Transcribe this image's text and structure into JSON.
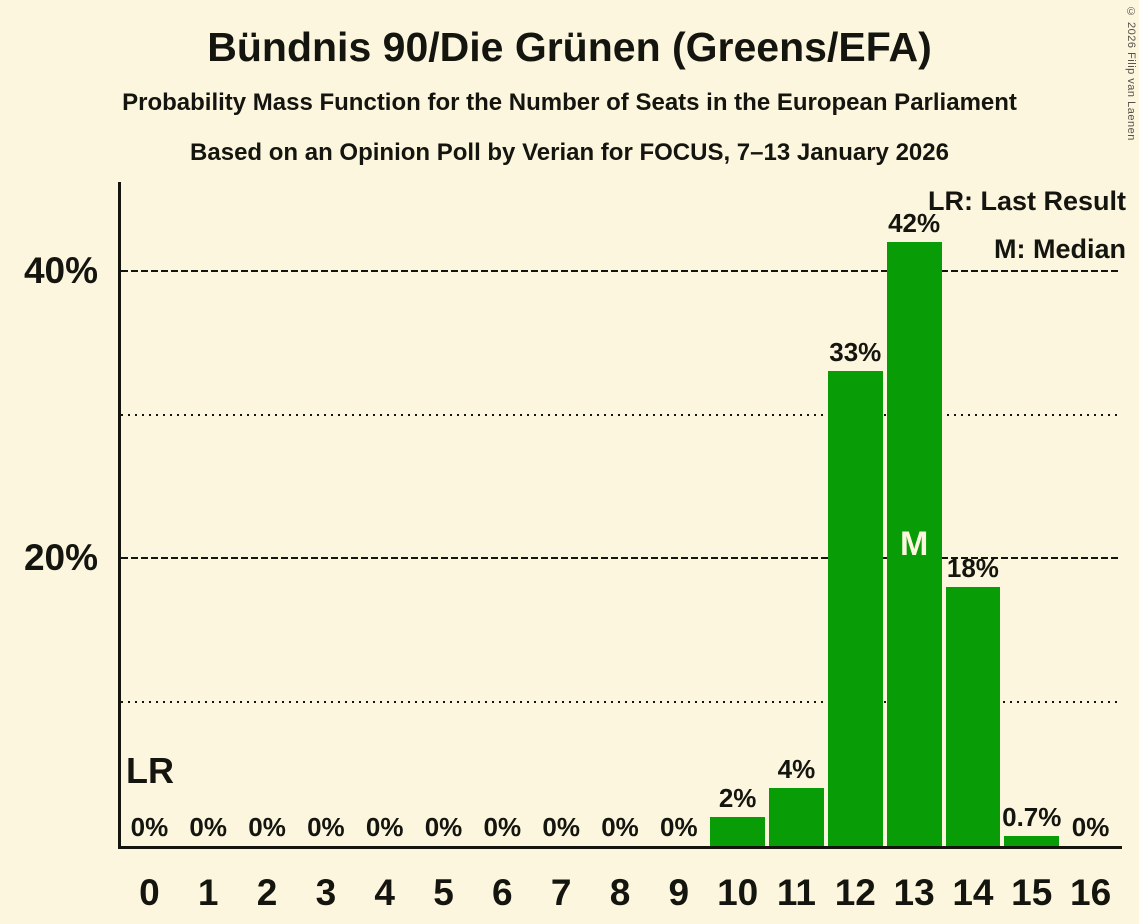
{
  "title": "Bündnis 90/Die Grünen (Greens/EFA)",
  "subtitles": [
    "Probability Mass Function for the Number of Seats in the European Parliament",
    "Based on an Opinion Poll by Verian for FOCUS, 7–13 January 2026"
  ],
  "copyright": "© 2026 Filip van Laenen",
  "legend": {
    "last_result": "LR: Last Result",
    "median": "M: Median"
  },
  "annotations": {
    "last_result_label": "LR",
    "median_label": "M"
  },
  "colors": {
    "background": "#FCF6DF",
    "bar": "#089C06",
    "text": "#15150F"
  },
  "chart_data": {
    "type": "bar",
    "title": "Bündnis 90/Die Grünen (Greens/EFA)",
    "xlabel": "",
    "ylabel": "",
    "categories": [
      0,
      1,
      2,
      3,
      4,
      5,
      6,
      7,
      8,
      9,
      10,
      11,
      12,
      13,
      14,
      15,
      16
    ],
    "values": [
      0,
      0,
      0,
      0,
      0,
      0,
      0,
      0,
      0,
      0,
      2,
      4,
      33,
      42,
      18,
      0.7,
      0
    ],
    "labels": [
      "0%",
      "0%",
      "0%",
      "0%",
      "0%",
      "0%",
      "0%",
      "0%",
      "0%",
      "0%",
      "2%",
      "4%",
      "33%",
      "42%",
      "18%",
      "0.7%",
      "0%"
    ],
    "ylim": [
      0,
      46.2
    ],
    "yticks": [
      {
        "value": 10,
        "label": "",
        "style": "dotted"
      },
      {
        "value": 20,
        "label": "20%",
        "style": "dashed"
      },
      {
        "value": 30,
        "label": "",
        "style": "dotted"
      },
      {
        "value": 40,
        "label": "40%",
        "style": "dashed"
      }
    ],
    "median_seat": 13,
    "last_result_seat": 0,
    "grid": "horizontal",
    "legend_position": "top-right"
  }
}
